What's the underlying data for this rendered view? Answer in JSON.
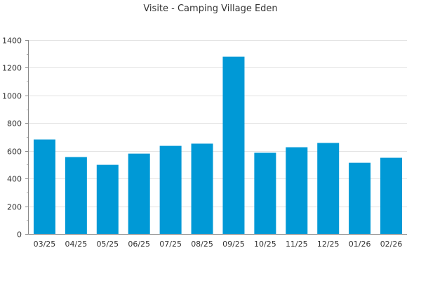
{
  "chart_data": {
    "type": "bar",
    "title": "Visite - Camping Village Eden",
    "xlabel": "",
    "ylabel": "",
    "categories": [
      "03/25",
      "04/25",
      "05/25",
      "06/25",
      "07/25",
      "08/25",
      "09/25",
      "10/25",
      "11/25",
      "12/25",
      "01/26",
      "02/26"
    ],
    "values": [
      682,
      555,
      499,
      580,
      636,
      652,
      1280,
      586,
      626,
      657,
      514,
      550
    ],
    "ylim": [
      0,
      1400
    ],
    "yticks": [
      0,
      200,
      400,
      600,
      800,
      1000,
      1200,
      1400
    ],
    "grid": true,
    "legend": "none",
    "bar_color": "#0099d6"
  }
}
